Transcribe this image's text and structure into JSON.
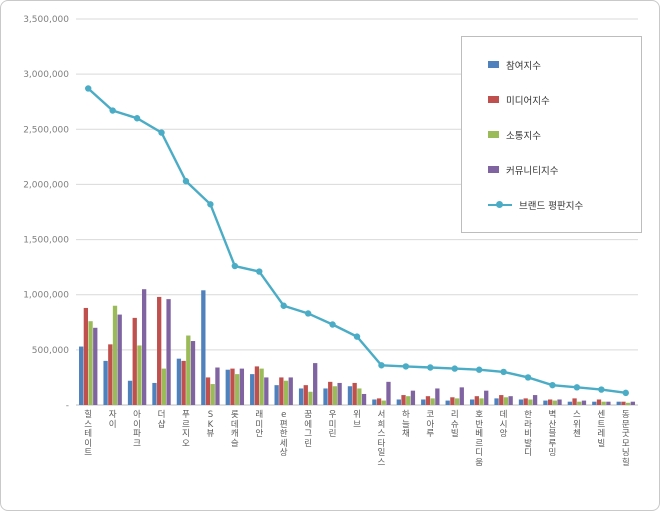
{
  "page": {
    "background": "#ffffff",
    "frame_border": "#c9c9c9"
  },
  "chart_data": {
    "type": "bar",
    "subtype": "grouped bars with overlaid line (brand reputation index)",
    "title": "",
    "xlabel": "",
    "ylabel": "",
    "ylim": [
      0,
      3500000
    ],
    "grid": true,
    "legend_position": "top-right",
    "categories": [
      "힐스테이트",
      "자이",
      "아이파크",
      "더샵",
      "푸르지오",
      "SK뷰",
      "롯데캐슬",
      "래미안",
      "e편한세상",
      "꿈에그린",
      "우미린",
      "위브",
      "서희스타일스",
      "하늘채",
      "코아루",
      "리슈빌",
      "호반베르디움",
      "데시앙",
      "한라비발디",
      "벽산블루밍",
      "스위첸",
      "센트레빌",
      "동문굿모닝힐"
    ],
    "y_ticks": [
      {
        "value": 3500000,
        "label": "3,500,000"
      },
      {
        "value": 3000000,
        "label": "3,000,000"
      },
      {
        "value": 2500000,
        "label": "2,500,000"
      },
      {
        "value": 2000000,
        "label": "2,000,000"
      },
      {
        "value": 1500000,
        "label": "1,500,000"
      },
      {
        "value": 1000000,
        "label": "1,000,000"
      },
      {
        "value": 500000,
        "label": "500,000"
      },
      {
        "value": 0,
        "label": "-"
      }
    ],
    "series": [
      {
        "name": "참여지수",
        "type": "bar",
        "color": "#4F81BD",
        "values": [
          530000,
          400000,
          220000,
          200000,
          420000,
          1040000,
          320000,
          280000,
          180000,
          150000,
          150000,
          170000,
          50000,
          50000,
          50000,
          40000,
          50000,
          60000,
          50000,
          40000,
          30000,
          30000,
          30000
        ]
      },
      {
        "name": "미디어지수",
        "type": "bar",
        "color": "#C0504D",
        "values": [
          880000,
          550000,
          790000,
          980000,
          400000,
          250000,
          330000,
          350000,
          250000,
          180000,
          210000,
          200000,
          60000,
          90000,
          80000,
          70000,
          80000,
          90000,
          60000,
          50000,
          60000,
          50000,
          30000
        ]
      },
      {
        "name": "소통지수",
        "type": "bar",
        "color": "#9BBB59",
        "values": [
          760000,
          900000,
          540000,
          330000,
          630000,
          190000,
          280000,
          330000,
          220000,
          120000,
          170000,
          150000,
          40000,
          80000,
          60000,
          60000,
          60000,
          70000,
          50000,
          40000,
          30000,
          30000,
          20000
        ]
      },
      {
        "name": "커뮤니티지수",
        "type": "bar",
        "color": "#8064A2",
        "values": [
          700000,
          820000,
          1050000,
          960000,
          580000,
          340000,
          330000,
          250000,
          250000,
          380000,
          200000,
          100000,
          210000,
          130000,
          150000,
          160000,
          130000,
          80000,
          90000,
          50000,
          40000,
          30000,
          30000
        ]
      },
      {
        "name": "브랜드 평판지수",
        "type": "line",
        "color": "#4BACC6",
        "values": [
          2870000,
          2670000,
          2600000,
          2470000,
          2030000,
          1820000,
          1260000,
          1210000,
          900000,
          830000,
          730000,
          620000,
          360000,
          350000,
          340000,
          330000,
          320000,
          300000,
          250000,
          180000,
          160000,
          140000,
          110000
        ]
      }
    ]
  }
}
